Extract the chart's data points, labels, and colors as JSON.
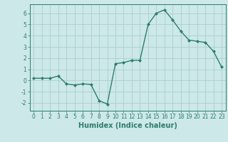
{
  "x": [
    0,
    1,
    2,
    3,
    4,
    5,
    6,
    7,
    8,
    9,
    10,
    11,
    12,
    13,
    14,
    15,
    16,
    17,
    18,
    19,
    20,
    21,
    22,
    23
  ],
  "y": [
    0.2,
    0.2,
    0.2,
    0.4,
    -0.3,
    -0.4,
    -0.3,
    -0.35,
    -1.8,
    -2.1,
    1.5,
    1.6,
    1.8,
    1.8,
    5.0,
    6.0,
    6.3,
    5.4,
    4.4,
    3.6,
    3.5,
    3.4,
    2.6,
    1.2
  ],
  "line_color": "#2e7d6e",
  "marker": "D",
  "marker_size": 2.0,
  "linewidth": 1.0,
  "xlabel": "Humidex (Indice chaleur)",
  "xlim": [
    -0.5,
    23.5
  ],
  "ylim": [
    -2.7,
    6.8
  ],
  "yticks": [
    -2,
    -1,
    0,
    1,
    2,
    3,
    4,
    5,
    6
  ],
  "xticks": [
    0,
    1,
    2,
    3,
    4,
    5,
    6,
    7,
    8,
    9,
    10,
    11,
    12,
    13,
    14,
    15,
    16,
    17,
    18,
    19,
    20,
    21,
    22,
    23
  ],
  "xtick_labels": [
    "0",
    "1",
    "2",
    "3",
    "4",
    "5",
    "6",
    "7",
    "8",
    "9",
    "10",
    "11",
    "12",
    "13",
    "14",
    "15",
    "16",
    "17",
    "18",
    "19",
    "20",
    "21",
    "22",
    "23"
  ],
  "background_color": "#cce8e8",
  "grid_color": "#aacece",
  "tick_fontsize": 5.5,
  "label_fontsize": 7.0
}
